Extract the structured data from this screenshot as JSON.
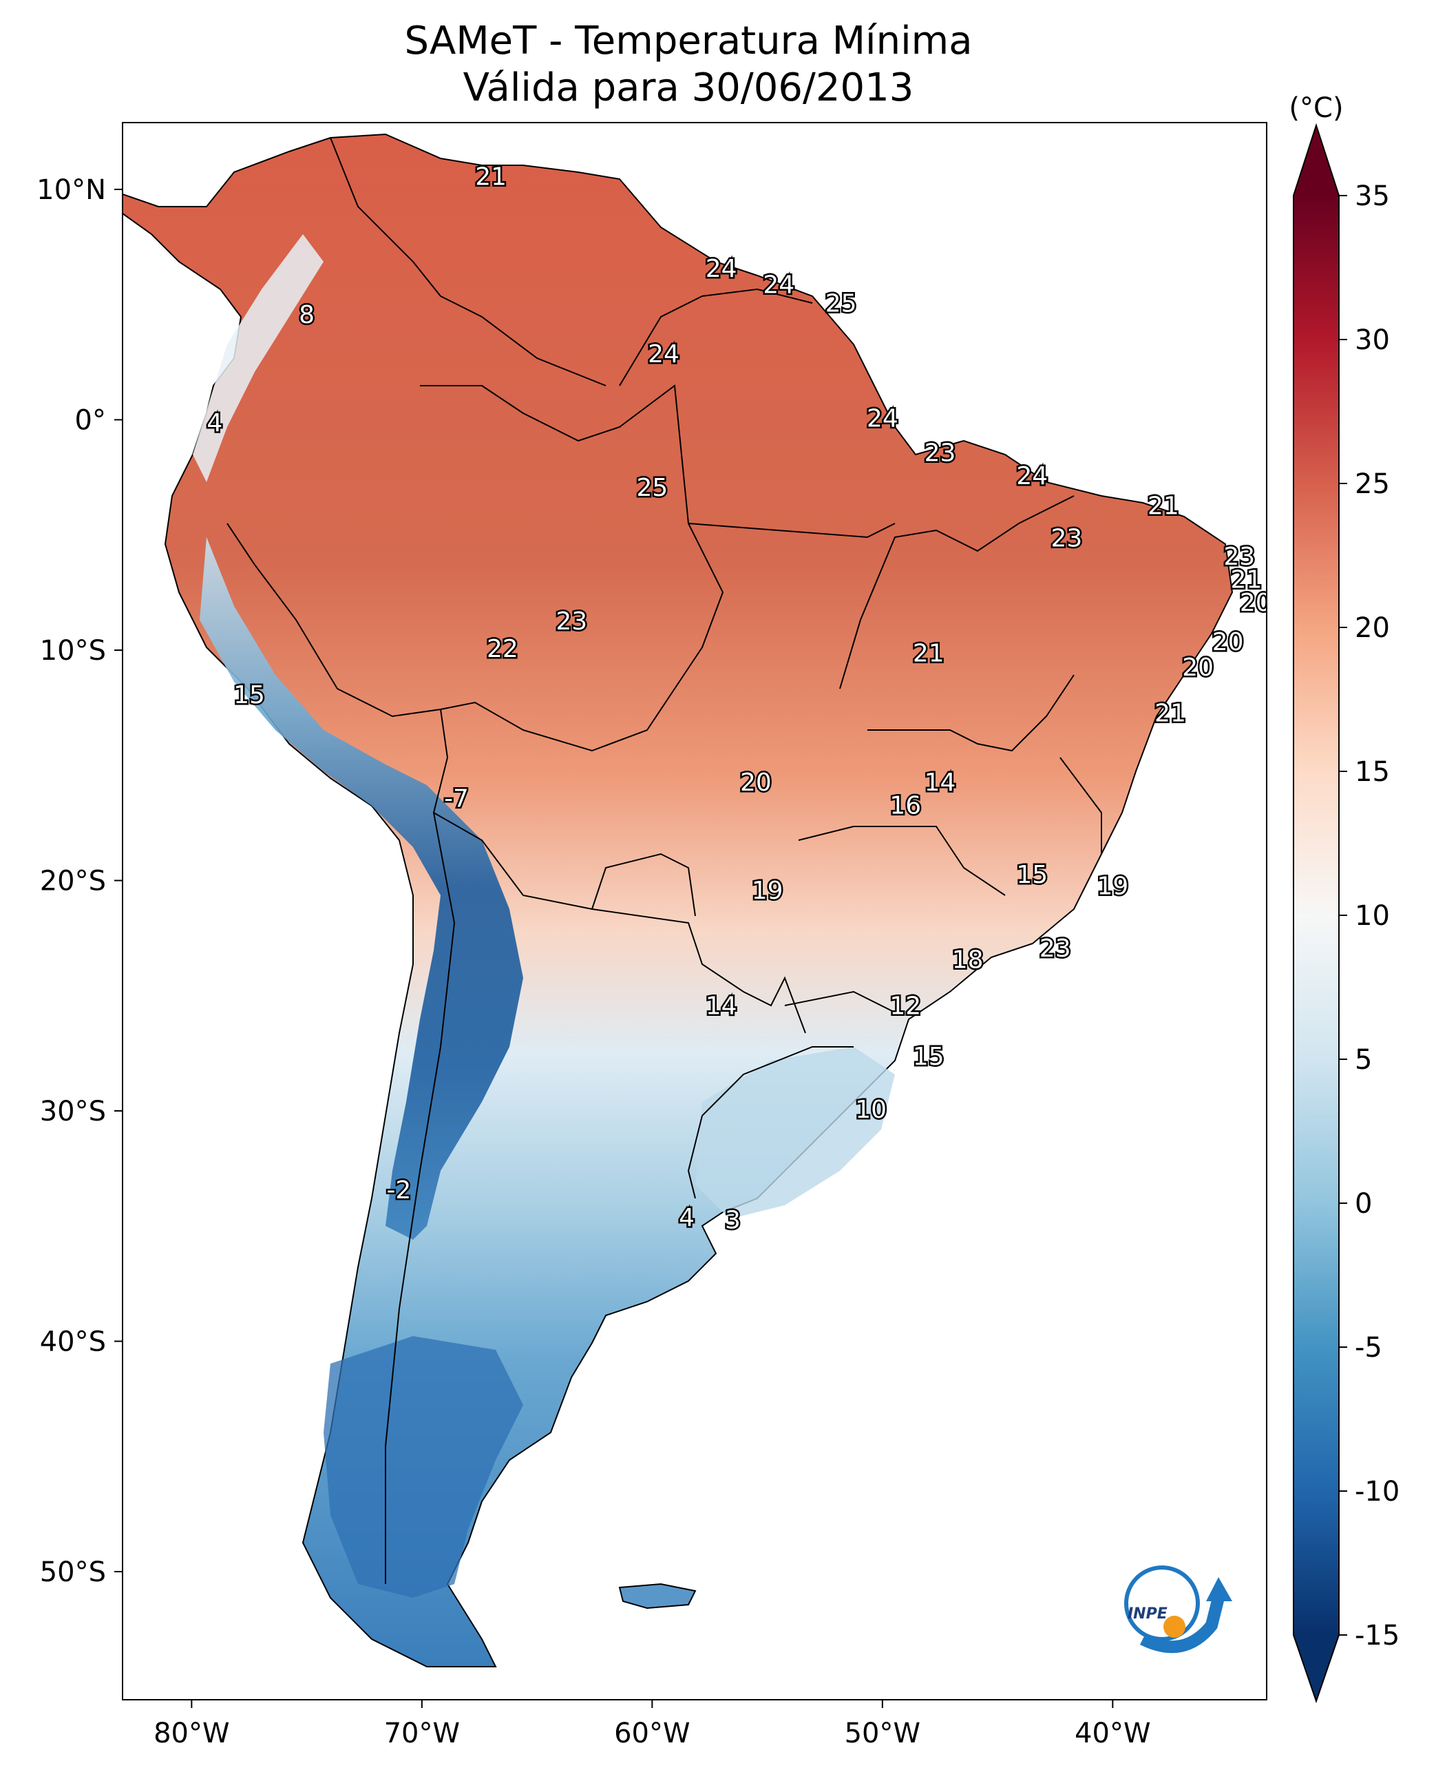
{
  "title": {
    "line1": "SAMeT - Temperatura Mínima",
    "line2": "Válida para 30/06/2013"
  },
  "latitude_ticks": [
    "10°N",
    "0°",
    "10°S",
    "20°S",
    "30°S",
    "40°S",
    "50°S"
  ],
  "longitude_ticks": [
    "80°W",
    "70°W",
    "60°W",
    "50°W",
    "40°W"
  ],
  "colorbar": {
    "unit": "(°C)",
    "ticks": [
      "35",
      "30",
      "25",
      "20",
      "15",
      "10",
      "5",
      "0",
      "-5",
      "-10",
      "-15"
    ],
    "min": -15,
    "max": 35,
    "colors": [
      "#08306b",
      "#2166ac",
      "#4393c3",
      "#92c5de",
      "#d1e5f0",
      "#f7f7f7",
      "#fddbc7",
      "#f4a582",
      "#d6604d",
      "#b2182b",
      "#67001f"
    ]
  },
  "station_labels": [
    {
      "value": "21",
      "lon": -67.0,
      "lat": 10.5
    },
    {
      "value": "24",
      "lon": -57.0,
      "lat": 6.5
    },
    {
      "value": "24",
      "lon": -54.5,
      "lat": 5.8
    },
    {
      "value": "25",
      "lon": -51.8,
      "lat": 5.0
    },
    {
      "value": "8",
      "lon": -75.0,
      "lat": 4.5
    },
    {
      "value": "24",
      "lon": -59.5,
      "lat": 2.8
    },
    {
      "value": "4",
      "lon": -79.0,
      "lat": -0.2
    },
    {
      "value": "24",
      "lon": -50.0,
      "lat": 0.0
    },
    {
      "value": "23",
      "lon": -47.5,
      "lat": -1.5
    },
    {
      "value": "24",
      "lon": -43.5,
      "lat": -2.5
    },
    {
      "value": "25",
      "lon": -60.0,
      "lat": -3.0
    },
    {
      "value": "21",
      "lon": -37.8,
      "lat": -3.8
    },
    {
      "value": "23",
      "lon": -42.0,
      "lat": -5.2
    },
    {
      "value": "23",
      "lon": -34.5,
      "lat": -6.0
    },
    {
      "value": "21",
      "lon": -34.2,
      "lat": -7.0
    },
    {
      "value": "20",
      "lon": -33.8,
      "lat": -8.0
    },
    {
      "value": "23",
      "lon": -63.5,
      "lat": -8.8
    },
    {
      "value": "22",
      "lon": -66.5,
      "lat": -10.0
    },
    {
      "value": "21",
      "lon": -48.0,
      "lat": -10.2
    },
    {
      "value": "20",
      "lon": -35.0,
      "lat": -9.7
    },
    {
      "value": "20",
      "lon": -36.3,
      "lat": -10.8
    },
    {
      "value": "15",
      "lon": -77.5,
      "lat": -12.0
    },
    {
      "value": "21",
      "lon": -37.5,
      "lat": -12.8
    },
    {
      "value": "20",
      "lon": -55.5,
      "lat": -15.8
    },
    {
      "value": "14",
      "lon": -47.5,
      "lat": -15.8
    },
    {
      "value": "16",
      "lon": -49.0,
      "lat": -16.8
    },
    {
      "value": "-7",
      "lon": -68.5,
      "lat": -16.5
    },
    {
      "value": "15",
      "lon": -43.5,
      "lat": -19.8
    },
    {
      "value": "19",
      "lon": -40.0,
      "lat": -20.3
    },
    {
      "value": "19",
      "lon": -55.0,
      "lat": -20.5
    },
    {
      "value": "23",
      "lon": -42.5,
      "lat": -23.0
    },
    {
      "value": "18",
      "lon": -46.3,
      "lat": -23.5
    },
    {
      "value": "14",
      "lon": -57.0,
      "lat": -25.5
    },
    {
      "value": "12",
      "lon": -49.0,
      "lat": -25.5
    },
    {
      "value": "15",
      "lon": -48.0,
      "lat": -27.7
    },
    {
      "value": "10",
      "lon": -50.5,
      "lat": -30.0
    },
    {
      "value": "-2",
      "lon": -71.0,
      "lat": -33.5
    },
    {
      "value": "4",
      "lon": -58.5,
      "lat": -34.7
    },
    {
      "value": "3",
      "lon": -56.5,
      "lat": -34.8
    }
  ],
  "logo": {
    "text": "INPE"
  }
}
